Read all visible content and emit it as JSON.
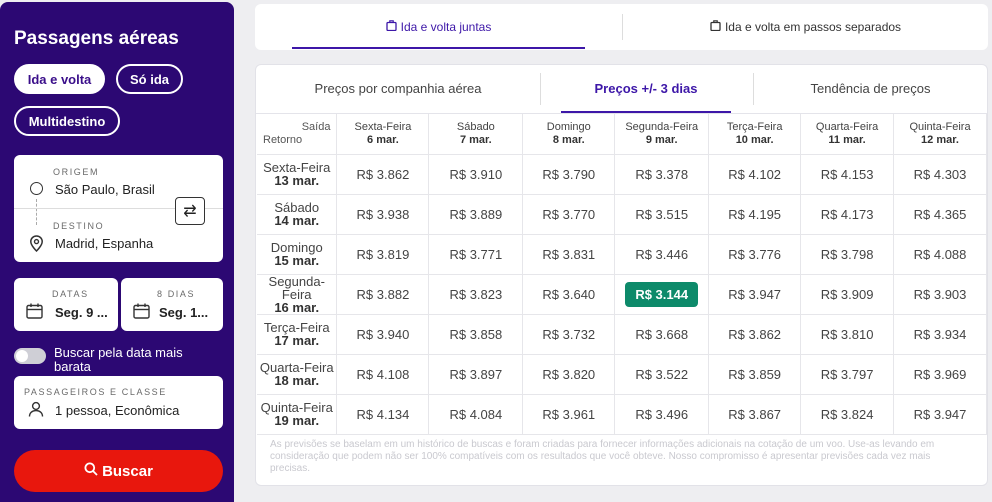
{
  "sidebar": {
    "title": "Passagens aéreas",
    "trip_types": [
      "Ida e volta",
      "Só ida",
      "Multidestino"
    ],
    "origin_label": "ORIGEM",
    "origin_value": "São Paulo, Brasil",
    "destination_label": "DESTINO",
    "destination_value": "Madrid, Espanha",
    "dates_label": "DATAS",
    "depart_date": "Seg. 9 ...",
    "days_label": "8 DIAS",
    "return_date": "Seg. 1...",
    "cheapest_toggle_label": "Buscar pela data mais barata",
    "passengers_label": "PASSAGEIROS E CLASSE",
    "passengers_value": "1 pessoa, Econômica",
    "search_label": "Buscar"
  },
  "top_tabs": [
    "Ida e volta juntas",
    "Ida e volta em passos separados"
  ],
  "panel_tabs": [
    "Preços por companhia aérea",
    "Preços +/- 3 dias",
    "Tendência de preços"
  ],
  "grid": {
    "corner_depart": "Saída",
    "corner_return": "Retorno",
    "depart_days": [
      {
        "day": "Sexta-Feira",
        "date": "6 mar."
      },
      {
        "day": "Sábado",
        "date": "7 mar."
      },
      {
        "day": "Domingo",
        "date": "8 mar."
      },
      {
        "day": "Segunda-Feira",
        "date": "9 mar."
      },
      {
        "day": "Terça-Feira",
        "date": "10 mar."
      },
      {
        "day": "Quarta-Feira",
        "date": "11 mar."
      },
      {
        "day": "Quinta-Feira",
        "date": "12 mar."
      }
    ],
    "rows": [
      {
        "day": "Sexta-Feira",
        "date": "13 mar.",
        "prices": [
          "R$ 3.862",
          "R$ 3.910",
          "R$ 3.790",
          "R$ 3.378",
          "R$ 4.102",
          "R$ 4.153",
          "R$ 4.303"
        ]
      },
      {
        "day": "Sábado",
        "date": "14 mar.",
        "prices": [
          "R$ 3.938",
          "R$ 3.889",
          "R$ 3.770",
          "R$ 3.515",
          "R$ 4.195",
          "R$ 4.173",
          "R$ 4.365"
        ]
      },
      {
        "day": "Domingo",
        "date": "15 mar.",
        "prices": [
          "R$ 3.819",
          "R$ 3.771",
          "R$ 3.831",
          "R$ 3.446",
          "R$ 3.776",
          "R$ 3.798",
          "R$ 4.088"
        ]
      },
      {
        "day": "Segunda-Feira",
        "date": "16 mar.",
        "prices": [
          "R$ 3.882",
          "R$ 3.823",
          "R$ 3.640",
          "R$ 3.144",
          "R$ 3.947",
          "R$ 3.909",
          "R$ 3.903"
        ]
      },
      {
        "day": "Terça-Feira",
        "date": "17 mar.",
        "prices": [
          "R$ 3.940",
          "R$ 3.858",
          "R$ 3.732",
          "R$ 3.668",
          "R$ 3.862",
          "R$ 3.810",
          "R$ 3.934"
        ]
      },
      {
        "day": "Quarta-Feira",
        "date": "18 mar.",
        "prices": [
          "R$ 4.108",
          "R$ 3.897",
          "R$ 3.820",
          "R$ 3.522",
          "R$ 3.859",
          "R$ 3.797",
          "R$ 3.969"
        ]
      },
      {
        "day": "Quinta-Feira",
        "date": "19 mar.",
        "prices": [
          "R$ 4.134",
          "R$ 4.084",
          "R$ 3.961",
          "R$ 3.496",
          "R$ 3.867",
          "R$ 3.824",
          "R$ 3.947"
        ]
      }
    ],
    "best": {
      "row": 3,
      "col": 3
    }
  },
  "disclaimer": "As previsões se baselam em um histórico de buscas e foram criadas para fornecer informações adicionais na cotação de um voo. Use-as levando em consideração que podem não ser 100% compatíveis com os resultados que você obteve. Nosso compromisso é apresentar previsões cada vez mais precisas.",
  "colors": {
    "sidebar_bg": "#2c0873",
    "accent": "#3d17a8",
    "search_button": "#e8170d",
    "best_price": "#0d8a6a"
  },
  "icons": {
    "origin": "circle-icon",
    "destination": "pin-icon",
    "swap": "swap-icon",
    "calendar": "calendar-icon",
    "person": "person-icon",
    "search": "search-icon",
    "tab": "luggage-icon"
  }
}
